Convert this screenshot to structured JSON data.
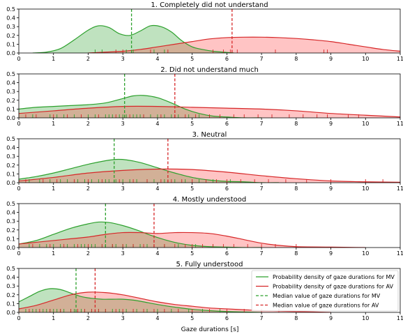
{
  "figure": {
    "xlabel": "Gaze durations [s]"
  },
  "colors": {
    "mv": "#2ca02c",
    "av": "#d62728",
    "mv_fill": "#2ca02c",
    "av_fill": "#ff3b3b"
  },
  "chart_data": [
    {
      "type": "area",
      "title": "1. Completely did not understand",
      "xlim": [
        0,
        11
      ],
      "ylim": [
        0,
        0.5
      ],
      "x_ticks": [
        "0",
        "1",
        "2",
        "3",
        "4",
        "5",
        "6",
        "7",
        "8",
        "9",
        "10",
        "11"
      ],
      "y_ticks": [
        "0.0",
        "0.1",
        "0.2",
        "0.3",
        "0.4",
        "0.5"
      ],
      "series": [
        {
          "key": "mv",
          "kind": "density",
          "x": [
            0.4,
            0.8,
            1.2,
            1.6,
            2.0,
            2.3,
            2.6,
            2.9,
            3.2,
            3.5,
            3.8,
            4.1,
            4.4,
            4.7,
            5.0,
            5.3,
            5.6,
            5.9,
            6.2
          ],
          "y": [
            0.0,
            0.01,
            0.05,
            0.15,
            0.26,
            0.31,
            0.29,
            0.22,
            0.2,
            0.25,
            0.31,
            0.3,
            0.24,
            0.14,
            0.07,
            0.04,
            0.02,
            0.01,
            0.0
          ]
        },
        {
          "key": "av",
          "kind": "density",
          "x": [
            2.0,
            2.5,
            3.0,
            3.5,
            4.0,
            4.5,
            5.0,
            5.5,
            6.0,
            6.5,
            7.0,
            7.5,
            8.0,
            8.5,
            9.0,
            9.5,
            10.0,
            10.5,
            11.0
          ],
          "y": [
            0.0,
            0.01,
            0.02,
            0.04,
            0.07,
            0.1,
            0.13,
            0.16,
            0.175,
            0.18,
            0.18,
            0.175,
            0.165,
            0.15,
            0.13,
            0.1,
            0.07,
            0.04,
            0.02
          ]
        },
        {
          "key": "mv",
          "kind": "median",
          "x": 3.25
        },
        {
          "key": "av",
          "kind": "median",
          "x": 6.15
        },
        {
          "key": "mv",
          "kind": "rug",
          "x": [
            2.2,
            2.4,
            3.1,
            3.3,
            3.9,
            4.2
          ]
        },
        {
          "key": "av",
          "kind": "rug",
          "x": [
            2.8,
            3.0,
            3.8,
            4.3,
            5.6,
            5.9,
            6.1,
            6.3,
            7.4,
            8.8,
            8.9
          ]
        }
      ]
    },
    {
      "type": "area",
      "title": "2. Did not understand much",
      "xlim": [
        0,
        11
      ],
      "ylim": [
        0,
        0.5
      ],
      "x_ticks": [
        "0",
        "1",
        "2",
        "3",
        "4",
        "5",
        "6",
        "7",
        "8",
        "9",
        "10",
        "11"
      ],
      "y_ticks": [
        "0.0",
        "0.1",
        "0.2",
        "0.3",
        "0.4",
        "0.5"
      ],
      "series": [
        {
          "key": "mv",
          "kind": "density",
          "x": [
            0,
            0.5,
            1.0,
            1.5,
            2.0,
            2.5,
            3.0,
            3.3,
            3.6,
            4.0,
            4.4,
            4.8,
            5.2,
            5.6,
            6.0,
            6.5,
            7.0
          ],
          "y": [
            0.1,
            0.12,
            0.13,
            0.14,
            0.15,
            0.17,
            0.22,
            0.25,
            0.255,
            0.23,
            0.17,
            0.1,
            0.05,
            0.02,
            0.01,
            0.0,
            0.0
          ]
        },
        {
          "key": "av",
          "kind": "density",
          "x": [
            0,
            1,
            2,
            3,
            4,
            5,
            6,
            7,
            8,
            9,
            10,
            11
          ],
          "y": [
            0.05,
            0.08,
            0.11,
            0.13,
            0.13,
            0.12,
            0.11,
            0.1,
            0.08,
            0.05,
            0.03,
            0.01
          ]
        },
        {
          "key": "mv",
          "kind": "median",
          "x": 3.05
        },
        {
          "key": "av",
          "kind": "median",
          "x": 4.5
        },
        {
          "key": "mv",
          "kind": "rug",
          "x": [
            0.4,
            0.9,
            1.1,
            1.3,
            1.6,
            2.0,
            2.2,
            2.5,
            2.6,
            2.7,
            2.9,
            3.0,
            3.1,
            3.3,
            3.4,
            3.5,
            3.6,
            3.8,
            4.0,
            4.2,
            4.4,
            4.6,
            4.9,
            5.2,
            5.5
          ]
        },
        {
          "key": "av",
          "kind": "rug",
          "x": [
            0.2,
            0.5,
            1.0,
            1.4,
            1.8,
            2.3,
            2.8,
            3.2,
            3.6,
            4.1,
            4.5,
            4.8,
            5.1,
            5.5,
            5.8,
            6.2,
            6.5,
            6.9,
            7.3,
            7.8,
            8.2,
            8.6,
            8.9,
            9.5,
            9.8
          ]
        }
      ]
    },
    {
      "type": "area",
      "title": "3. Neutral",
      "xlim": [
        0,
        11
      ],
      "ylim": [
        0,
        0.5
      ],
      "x_ticks": [
        "0",
        "1",
        "2",
        "3",
        "4",
        "5",
        "6",
        "7",
        "8",
        "9",
        "10",
        "11"
      ],
      "y_ticks": [
        "0.0",
        "0.1",
        "0.2",
        "0.3",
        "0.4",
        "0.5"
      ],
      "series": [
        {
          "key": "mv",
          "kind": "density",
          "x": [
            0,
            0.5,
            1.0,
            1.5,
            2.0,
            2.5,
            2.8,
            3.1,
            3.5,
            4.0,
            4.5,
            5.0,
            5.5,
            6.0,
            6.5,
            7.0,
            7.5
          ],
          "y": [
            0.04,
            0.07,
            0.11,
            0.16,
            0.21,
            0.25,
            0.265,
            0.26,
            0.23,
            0.17,
            0.11,
            0.06,
            0.03,
            0.015,
            0.01,
            0.0,
            0.0
          ]
        },
        {
          "key": "av",
          "kind": "density",
          "x": [
            0,
            1,
            2,
            3,
            4,
            5,
            6,
            7,
            8,
            9,
            10,
            11
          ],
          "y": [
            0.02,
            0.06,
            0.11,
            0.14,
            0.155,
            0.15,
            0.12,
            0.08,
            0.045,
            0.02,
            0.01,
            0.005
          ]
        },
        {
          "key": "mv",
          "kind": "median",
          "x": 2.75
        },
        {
          "key": "av",
          "kind": "median",
          "x": 4.3
        },
        {
          "key": "mv",
          "kind": "rug",
          "x": [
            0.3,
            0.6,
            0.9,
            1.2,
            1.4,
            1.7,
            1.9,
            2.1,
            2.3,
            2.5,
            2.6,
            2.8,
            3.0,
            3.2,
            3.4,
            3.7,
            3.9,
            4.2,
            4.5,
            4.8,
            5.2,
            5.6,
            6.1
          ]
        },
        {
          "key": "av",
          "kind": "rug",
          "x": [
            0.2,
            0.7,
            1.1,
            1.6,
            2.0,
            2.4,
            2.9,
            3.3,
            3.7,
            4.1,
            4.4,
            4.7,
            5.0,
            5.4,
            5.7,
            6.0,
            6.4,
            6.8,
            7.2,
            7.7,
            8.3,
            9.0,
            10.0,
            10.5
          ]
        }
      ]
    },
    {
      "type": "area",
      "title": "4. Mostly understood",
      "xlim": [
        0,
        11
      ],
      "ylim": [
        0,
        0.5
      ],
      "x_ticks": [
        "0",
        "1",
        "2",
        "3",
        "4",
        "5",
        "6",
        "7",
        "8",
        "9",
        "10",
        "11"
      ],
      "y_ticks": [
        "0.0",
        "0.1",
        "0.2",
        "0.3",
        "0.4",
        "0.5"
      ],
      "series": [
        {
          "key": "mv",
          "kind": "density",
          "x": [
            0,
            0.5,
            1.0,
            1.5,
            2.0,
            2.3,
            2.6,
            3.0,
            3.4,
            3.8,
            4.2,
            4.6,
            5.0,
            5.5,
            6.0,
            6.5,
            7.0
          ],
          "y": [
            0.04,
            0.08,
            0.15,
            0.22,
            0.27,
            0.29,
            0.285,
            0.25,
            0.2,
            0.14,
            0.09,
            0.05,
            0.025,
            0.01,
            0.005,
            0.0,
            0.0
          ]
        },
        {
          "key": "av",
          "kind": "density",
          "x": [
            0,
            0.5,
            1.0,
            1.5,
            2.0,
            2.5,
            3.0,
            3.5,
            4.0,
            4.5,
            5.0,
            5.5,
            6.0,
            6.5,
            7.0,
            7.5,
            8.0,
            9.0,
            10.0
          ],
          "y": [
            0.04,
            0.06,
            0.08,
            0.1,
            0.12,
            0.15,
            0.17,
            0.17,
            0.16,
            0.17,
            0.17,
            0.16,
            0.13,
            0.09,
            0.05,
            0.025,
            0.01,
            0.005,
            0.0
          ]
        },
        {
          "key": "mv",
          "kind": "median",
          "x": 2.5
        },
        {
          "key": "av",
          "kind": "median",
          "x": 3.9
        },
        {
          "key": "mv",
          "kind": "rug",
          "x": [
            0.3,
            0.6,
            0.8,
            1.0,
            1.2,
            1.4,
            1.6,
            1.8,
            1.9,
            2.1,
            2.2,
            2.4,
            2.5,
            2.7,
            2.8,
            3.0,
            3.1,
            3.3,
            3.5,
            3.7,
            3.9,
            4.2,
            4.6,
            5.1,
            5.6
          ]
        },
        {
          "key": "av",
          "kind": "rug",
          "x": [
            0.4,
            0.9,
            1.3,
            1.7,
            2.0,
            2.4,
            2.7,
            3.0,
            3.3,
            3.6,
            3.9,
            4.2,
            4.5,
            4.8,
            5.0,
            5.3,
            5.6,
            5.9,
            6.2,
            6.6,
            7.0,
            7.4,
            8.0
          ]
        }
      ]
    },
    {
      "type": "area",
      "title": "5. Fully understood",
      "xlim": [
        0,
        11
      ],
      "ylim": [
        0,
        0.5
      ],
      "x_ticks": [
        "0",
        "1",
        "2",
        "3",
        "4",
        "5",
        "6",
        "7",
        "8",
        "9",
        "10",
        "11"
      ],
      "y_ticks": [
        "0.0",
        "0.1",
        "0.2",
        "0.3",
        "0.4",
        "0.5"
      ],
      "series": [
        {
          "key": "mv",
          "kind": "density",
          "x": [
            0,
            0.3,
            0.6,
            0.9,
            1.2,
            1.5,
            1.8,
            2.1,
            2.4,
            2.7,
            3.0,
            3.3,
            3.6,
            4.0,
            4.5,
            5.0,
            5.5,
            6.0,
            6.5,
            7.0
          ],
          "y": [
            0.12,
            0.18,
            0.24,
            0.27,
            0.26,
            0.22,
            0.18,
            0.16,
            0.15,
            0.15,
            0.15,
            0.14,
            0.12,
            0.09,
            0.06,
            0.035,
            0.02,
            0.01,
            0.005,
            0.0
          ]
        },
        {
          "key": "av",
          "kind": "density",
          "x": [
            0,
            0.5,
            1.0,
            1.5,
            2.0,
            2.5,
            3.0,
            3.5,
            4.0,
            4.5,
            5.0,
            5.5,
            6.0,
            6.5,
            7.0,
            7.5,
            8.0,
            8.5,
            9.0
          ],
          "y": [
            0.04,
            0.08,
            0.14,
            0.2,
            0.23,
            0.225,
            0.2,
            0.16,
            0.12,
            0.09,
            0.07,
            0.05,
            0.04,
            0.03,
            0.02,
            0.015,
            0.01,
            0.005,
            0.0
          ]
        },
        {
          "key": "mv",
          "kind": "median",
          "x": 1.65
        },
        {
          "key": "av",
          "kind": "median",
          "x": 2.2
        },
        {
          "key": "mv",
          "kind": "rug",
          "x": [
            0.2,
            0.4,
            0.5,
            0.7,
            0.8,
            0.9,
            1.0,
            1.1,
            1.2,
            1.3,
            1.5,
            1.6,
            1.8,
            1.9,
            2.1,
            2.3,
            2.5,
            2.7,
            2.9,
            3.1,
            3.4,
            3.7,
            4.0,
            4.4,
            4.9,
            5.3,
            5.8
          ]
        },
        {
          "key": "av",
          "kind": "rug",
          "x": [
            0.3,
            0.6,
            0.9,
            1.2,
            1.5,
            1.7,
            1.9,
            2.1,
            2.3,
            2.5,
            2.8,
            3.0,
            3.3,
            3.6,
            3.9,
            4.2,
            4.6,
            5.0,
            5.5,
            6.0,
            6.5,
            7.0,
            7.5
          ]
        }
      ],
      "legend": {
        "position": "upper right",
        "entries": [
          {
            "label": "Probability density of gaze durations for MV",
            "key": "mv",
            "style": "solid"
          },
          {
            "label": "Probability density of gaze durations for AV",
            "key": "av",
            "style": "solid"
          },
          {
            "label": "Median value of gaze durations for MV",
            "key": "mv",
            "style": "dashed"
          },
          {
            "label": "Median value of gaze durations for AV",
            "key": "av",
            "style": "dashed"
          }
        ]
      }
    }
  ]
}
